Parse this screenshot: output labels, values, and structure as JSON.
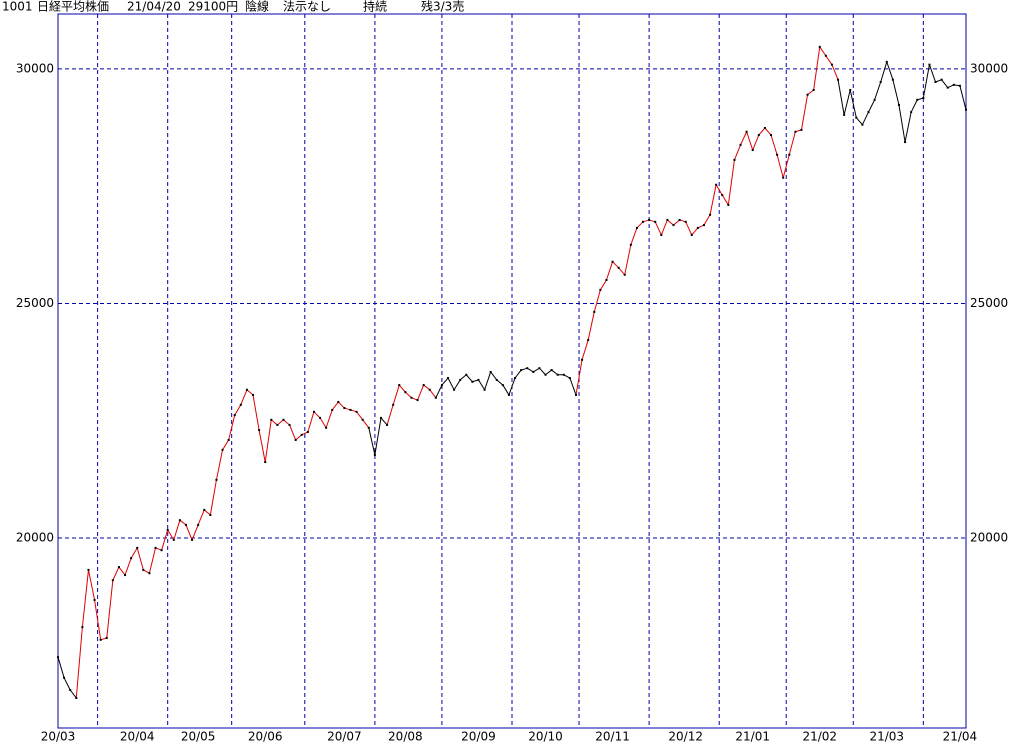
{
  "chart_data": {
    "type": "line",
    "header": {
      "code": "1001",
      "name": "日経平均株価",
      "date": "21/04/20",
      "price": "29100円",
      "candle": "陰線",
      "signal": "法示なし",
      "status": "持続",
      "remain": "残3/3売"
    },
    "categories": [
      "20/03",
      null,
      null,
      null,
      null,
      null,
      null,
      null,
      null,
      null,
      null,
      null,
      null,
      "20/04",
      null,
      null,
      null,
      null,
      null,
      null,
      null,
      null,
      null,
      "20/05",
      null,
      null,
      null,
      null,
      null,
      null,
      null,
      null,
      null,
      null,
      "20/06",
      null,
      null,
      null,
      null,
      null,
      null,
      null,
      null,
      null,
      null,
      null,
      null,
      "20/07",
      null,
      null,
      null,
      null,
      null,
      null,
      null,
      null,
      null,
      "20/08",
      null,
      null,
      null,
      null,
      null,
      null,
      null,
      null,
      null,
      null,
      null,
      "20/09",
      null,
      null,
      null,
      null,
      null,
      null,
      null,
      null,
      null,
      null,
      "20/10",
      null,
      null,
      null,
      null,
      null,
      null,
      null,
      null,
      null,
      null,
      "20/11",
      null,
      null,
      null,
      null,
      null,
      null,
      null,
      null,
      null,
      null,
      null,
      "20/12",
      null,
      null,
      null,
      null,
      null,
      null,
      null,
      null,
      null,
      null,
      "21/01",
      null,
      null,
      null,
      null,
      null,
      null,
      null,
      null,
      null,
      null,
      "21/02",
      null,
      null,
      null,
      null,
      null,
      null,
      null,
      null,
      null,
      null,
      "21/03",
      null,
      null,
      null,
      null,
      null,
      null,
      null,
      null,
      null,
      null,
      null,
      "21/04",
      null
    ],
    "values": [
      17460,
      17020,
      16760,
      16590,
      18100,
      19320,
      18680,
      17830,
      17870,
      19100,
      19380,
      19210,
      19570,
      19790,
      19320,
      19250,
      19790,
      19740,
      20170,
      19960,
      20380,
      20280,
      19960,
      20280,
      20600,
      20490,
      21240,
      21880,
      22090,
      22620,
      22840,
      23160,
      23050,
      22300,
      21620,
      22520,
      22410,
      22520,
      22410,
      22090,
      22200,
      22260,
      22690,
      22560,
      22350,
      22730,
      22900,
      22770,
      22730,
      22690,
      22520,
      22350,
      21770,
      22560,
      22410,
      22840,
      23260,
      23110,
      22990,
      22940,
      23260,
      23160,
      22990,
      23260,
      23410,
      23160,
      23370,
      23480,
      23330,
      23370,
      23160,
      23540,
      23370,
      23260,
      23050,
      23410,
      23580,
      23620,
      23540,
      23620,
      23480,
      23580,
      23480,
      23480,
      23410,
      23050,
      23800,
      24220,
      24820,
      25290,
      25500,
      25890,
      25760,
      25610,
      26250,
      26610,
      26740,
      26780,
      26740,
      26460,
      26780,
      26670,
      26780,
      26740,
      26460,
      26610,
      26670,
      26890,
      27530,
      27310,
      27100,
      28060,
      28380,
      28660,
      28270,
      28590,
      28740,
      28590,
      28170,
      27680,
      28170,
      28660,
      28700,
      29450,
      29550,
      30470,
      30280,
      30090,
      29770,
      29020,
      29550,
      28960,
      28810,
      29080,
      29340,
      29720,
      30150,
      29770,
      29230,
      28440,
      29080,
      29340,
      29380,
      30090,
      29720,
      29770,
      29600,
      29660,
      29640,
      29130
    ],
    "segment_colors": [
      "#000000",
      "#000000",
      "#000000",
      "#000000",
      "#e00000",
      "#e00000",
      "#e00000",
      "#e00000",
      "#e00000",
      "#e00000",
      "#e00000",
      "#e00000",
      "#e00000",
      "#e00000",
      "#e00000",
      "#e00000",
      "#e00000",
      "#e00000",
      "#e00000",
      "#e00000",
      "#e00000",
      "#e00000",
      "#e00000",
      "#e00000",
      "#e00000",
      "#e00000",
      "#e00000",
      "#e00000",
      "#e00000",
      "#e00000",
      "#e00000",
      "#e00000",
      "#e00000",
      "#e00000",
      "#e00000",
      "#e00000",
      "#e00000",
      "#e00000",
      "#e00000",
      "#e00000",
      "#e00000",
      "#e00000",
      "#e00000",
      "#e00000",
      "#e00000",
      "#e00000",
      "#e00000",
      "#e00000",
      "#e00000",
      "#e00000",
      "#e00000",
      "#e00000",
      "#000000",
      "#000000",
      "#000000",
      "#e00000",
      "#e00000",
      "#e00000",
      "#e00000",
      "#e00000",
      "#e00000",
      "#e00000",
      "#e00000",
      "#000000",
      "#000000",
      "#000000",
      "#000000",
      "#000000",
      "#000000",
      "#000000",
      "#000000",
      "#000000",
      "#000000",
      "#000000",
      "#000000",
      "#000000",
      "#000000",
      "#000000",
      "#000000",
      "#000000",
      "#000000",
      "#000000",
      "#000000",
      "#000000",
      "#000000",
      "#000000",
      "#e00000",
      "#e00000",
      "#e00000",
      "#e00000",
      "#e00000",
      "#e00000",
      "#e00000",
      "#e00000",
      "#e00000",
      "#e00000",
      "#e00000",
      "#e00000",
      "#e00000",
      "#e00000",
      "#e00000",
      "#e00000",
      "#e00000",
      "#e00000",
      "#e00000",
      "#e00000",
      "#e00000",
      "#e00000",
      "#e00000",
      "#e00000",
      "#e00000",
      "#e00000",
      "#e00000",
      "#e00000",
      "#e00000",
      "#e00000",
      "#e00000",
      "#e00000",
      "#e00000",
      "#e00000",
      "#e00000",
      "#e00000",
      "#e00000",
      "#e00000",
      "#e00000",
      "#e00000",
      "#e00000",
      "#e00000",
      "#e00000",
      "#000000",
      "#000000",
      "#000000",
      "#000000",
      "#000000",
      "#000000",
      "#000000",
      "#000000",
      "#000000",
      "#000000",
      "#000000",
      "#000000",
      "#000000",
      "#000000",
      "#000000",
      "#000000",
      "#000000",
      "#000000",
      "#000000",
      "#000000",
      "#000000"
    ],
    "point_color": "#000000",
    "grid_color": "#0000aa",
    "frame_color": "#0000aa",
    "ylim": [
      15950,
      31170
    ],
    "yticks": [
      20000,
      25000,
      30000
    ],
    "grid": true
  }
}
